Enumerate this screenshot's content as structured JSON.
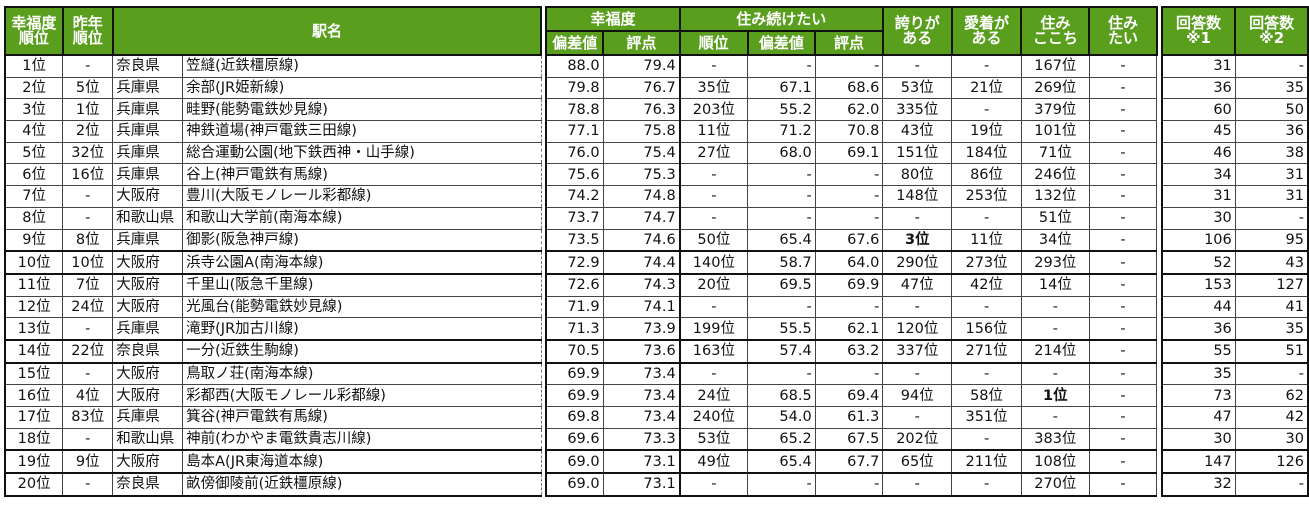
{
  "header": {
    "rank": "幸福度\n順位",
    "rank_l1": "幸福度",
    "rank_l2": "順位",
    "prev_l1": "昨年",
    "prev_l2": "順位",
    "station": "駅名",
    "happiness": "幸福度",
    "happiness_dev": "偏差値",
    "happiness_score": "評点",
    "stay": "住み続けたい",
    "stay_rank": "順位",
    "stay_dev": "偏差値",
    "stay_score": "評点",
    "pride_l1": "誇りが",
    "pride_l2": "ある",
    "attach_l1": "愛着が",
    "attach_l2": "ある",
    "comfort_l1": "住み",
    "comfort_l2": "ここち",
    "want_l1": "住み",
    "want_l2": "たい",
    "resp1_l1": "回答数",
    "resp1_l2": "※1",
    "resp2_l1": "回答数",
    "resp2_l2": "※2"
  },
  "header_color": "#5a9e1e",
  "rows": [
    [
      "1位",
      "-",
      "奈良県",
      "笠縫(近鉄橿原線)",
      "88.0",
      "79.4",
      "-",
      "-",
      "-",
      "-",
      "-",
      "167位",
      "-",
      "31",
      "-"
    ],
    [
      "2位",
      "5位",
      "兵庫県",
      "余部(JR姫新線)",
      "79.8",
      "76.7",
      "35位",
      "67.1",
      "68.6",
      "53位",
      "21位",
      "269位",
      "-",
      "36",
      "35"
    ],
    [
      "3位",
      "1位",
      "兵庫県",
      "畦野(能勢電鉄妙見線)",
      "78.8",
      "76.3",
      "203位",
      "55.2",
      "62.0",
      "335位",
      "-",
      "379位",
      "-",
      "60",
      "50"
    ],
    [
      "4位",
      "2位",
      "兵庫県",
      "神鉄道場(神戸電鉄三田線)",
      "77.1",
      "75.8",
      "11位",
      "71.2",
      "70.8",
      "43位",
      "19位",
      "101位",
      "-",
      "45",
      "36"
    ],
    [
      "5位",
      "32位",
      "兵庫県",
      "総合運動公園(地下鉄西神・山手線)",
      "76.0",
      "75.4",
      "27位",
      "68.0",
      "69.1",
      "151位",
      "184位",
      "71位",
      "-",
      "46",
      "38"
    ],
    [
      "6位",
      "16位",
      "兵庫県",
      "谷上(神戸電鉄有馬線)",
      "75.6",
      "75.3",
      "-",
      "-",
      "-",
      "80位",
      "86位",
      "246位",
      "-",
      "34",
      "31"
    ],
    [
      "7位",
      "-",
      "大阪府",
      "豊川(大阪モノレール彩都線)",
      "74.2",
      "74.8",
      "-",
      "-",
      "-",
      "148位",
      "253位",
      "132位",
      "-",
      "31",
      "31"
    ],
    [
      "8位",
      "-",
      "和歌山県",
      "和歌山大学前(南海本線)",
      "73.7",
      "74.7",
      "-",
      "-",
      "-",
      "-",
      "-",
      "51位",
      "-",
      "30",
      "-"
    ],
    [
      "9位",
      "8位",
      "兵庫県",
      "御影(阪急神戸線)",
      "73.5",
      "74.6",
      "50位",
      "65.4",
      "67.6",
      "3位",
      "11位",
      "34位",
      "-",
      "106",
      "95"
    ],
    [
      "10位",
      "10位",
      "大阪府",
      "浜寺公園A(南海本線)",
      "72.9",
      "74.4",
      "140位",
      "58.7",
      "64.0",
      "290位",
      "273位",
      "293位",
      "-",
      "52",
      "43"
    ],
    [
      "11位",
      "7位",
      "大阪府",
      "千里山(阪急千里線)",
      "72.6",
      "74.3",
      "20位",
      "69.5",
      "69.9",
      "47位",
      "42位",
      "14位",
      "-",
      "153",
      "127"
    ],
    [
      "12位",
      "24位",
      "大阪府",
      "光風台(能勢電鉄妙見線)",
      "71.9",
      "74.1",
      "-",
      "-",
      "-",
      "-",
      "-",
      "-",
      "-",
      "44",
      "41"
    ],
    [
      "13位",
      "-",
      "兵庫県",
      "滝野(JR加古川線)",
      "71.3",
      "73.9",
      "199位",
      "55.5",
      "62.1",
      "120位",
      "156位",
      "-",
      "-",
      "36",
      "35"
    ],
    [
      "14位",
      "22位",
      "奈良県",
      "一分(近鉄生駒線)",
      "70.5",
      "73.6",
      "163位",
      "57.4",
      "63.2",
      "337位",
      "271位",
      "214位",
      "-",
      "55",
      "51"
    ],
    [
      "15位",
      "-",
      "大阪府",
      "鳥取ノ荘(南海本線)",
      "69.9",
      "73.4",
      "-",
      "-",
      "-",
      "-",
      "-",
      "-",
      "-",
      "35",
      "-"
    ],
    [
      "16位",
      "4位",
      "大阪府",
      "彩都西(大阪モノレール彩都線)",
      "69.9",
      "73.4",
      "24位",
      "68.5",
      "69.4",
      "94位",
      "58位",
      "1位",
      "-",
      "73",
      "62"
    ],
    [
      "17位",
      "83位",
      "兵庫県",
      "箕谷(神戸電鉄有馬線)",
      "69.8",
      "73.4",
      "240位",
      "54.0",
      "61.3",
      "-",
      "351位",
      "-",
      "-",
      "47",
      "42"
    ],
    [
      "18位",
      "-",
      "和歌山県",
      "神前(わかやま電鉄貴志川線)",
      "69.6",
      "73.3",
      "53位",
      "65.2",
      "67.5",
      "202位",
      "-",
      "383位",
      "-",
      "30",
      "30"
    ],
    [
      "19位",
      "9位",
      "大阪府",
      "島本A(JR東海道本線)",
      "69.0",
      "73.1",
      "49位",
      "65.4",
      "67.7",
      "65位",
      "211位",
      "108位",
      "-",
      "147",
      "126"
    ],
    [
      "20位",
      "-",
      "奈良県",
      "畝傍御陵前(近鉄橿原線)",
      "69.0",
      "73.1",
      "-",
      "-",
      "-",
      "-",
      "-",
      "270位",
      "-",
      "32",
      "-"
    ]
  ],
  "bold_cells": [
    [
      8,
      9
    ],
    [
      15,
      11
    ]
  ]
}
